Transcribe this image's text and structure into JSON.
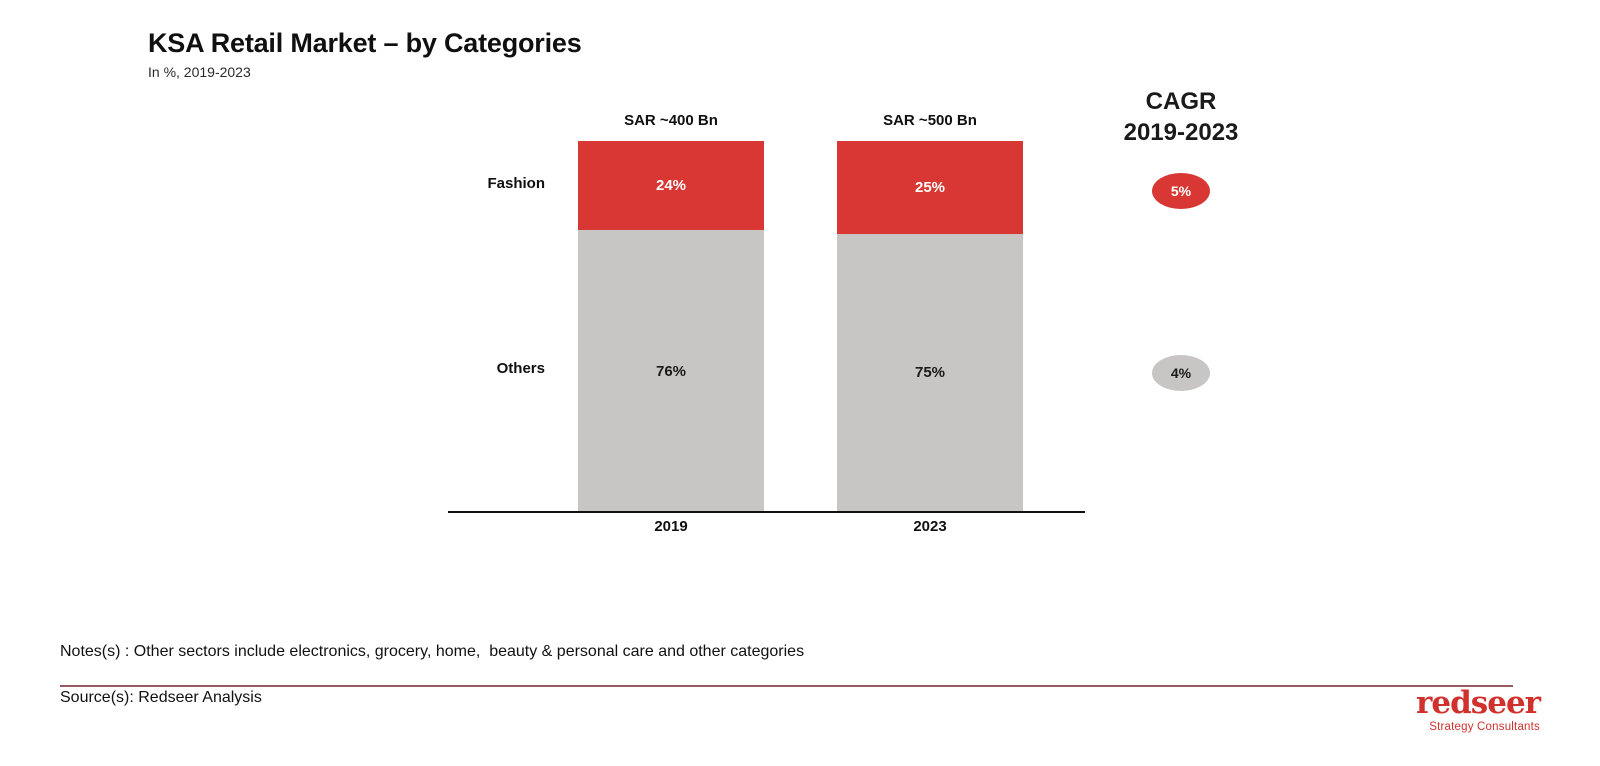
{
  "header": {
    "title": "KSA Retail Market – by Categories",
    "subtitle": "In %, 2019-2023"
  },
  "chart_data": {
    "type": "bar",
    "stacked": true,
    "unit": "percent",
    "title": "KSA Retail Market – by Categories",
    "categories": [
      "2019",
      "2023"
    ],
    "bar_totals": [
      "SAR ~400 Bn",
      "SAR ~500 Bn"
    ],
    "series": [
      {
        "name": "Fashion",
        "values": [
          24,
          25
        ],
        "display": [
          "24%",
          "25%"
        ],
        "color": "#d83733",
        "label_color": "#ffffff",
        "cagr": "5%"
      },
      {
        "name": "Others",
        "values": [
          76,
          75
        ],
        "display": [
          "76%",
          "75%"
        ],
        "color": "#c7c6c5",
        "label_color": "#1a1a1a",
        "cagr": "4%"
      }
    ],
    "cagr_panel": {
      "line1": "CAGR",
      "line2": "2019-2023"
    },
    "ylim": [
      0,
      100
    ],
    "grid": false,
    "legend_position": "row-labels-left",
    "axis_color": "#111111"
  },
  "footer": {
    "notes": "Notes(s) : Other sectors include electronics, grocery, home,  beauty & personal care and other categories",
    "source": "Source(s): Redseer Analysis",
    "rule_color": "#9a5a62",
    "logo": {
      "word": "redseer",
      "tagline": "Strategy Consultants",
      "color": "#d0312d"
    }
  }
}
